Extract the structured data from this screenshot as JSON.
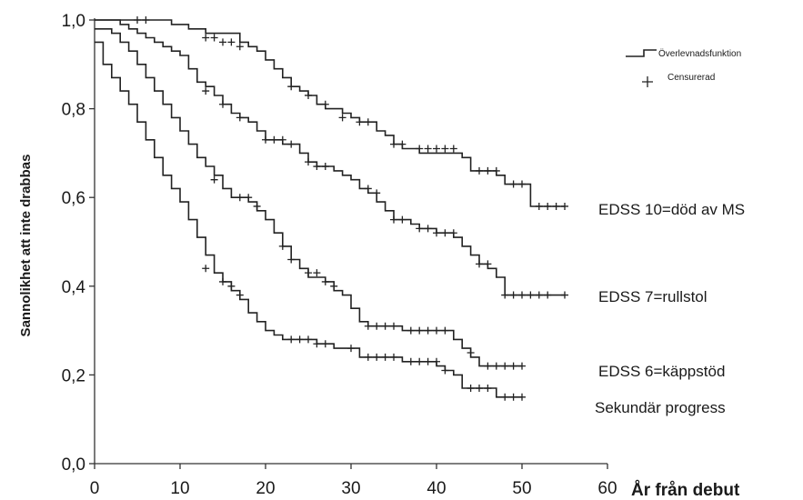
{
  "chart_data": {
    "type": "line",
    "title": "",
    "xlabel": "År från debut",
    "ylabel": "Sannolikhet att inte drabbas",
    "xlim": [
      0,
      60
    ],
    "ylim": [
      0,
      1
    ],
    "x_ticks": [
      "0",
      "10",
      "20",
      "30",
      "40",
      "50",
      "60"
    ],
    "y_ticks": [
      "0,0",
      "0,2",
      "0,4",
      "0,6",
      "0,8",
      "1,0"
    ],
    "grid": false,
    "legend": {
      "position": "top-right",
      "entries": [
        {
          "label": "Överlevnadsfunktion",
          "symbol": "step-line"
        },
        {
          "label": "Censurerad",
          "symbol": "plus"
        }
      ]
    },
    "series": [
      {
        "name": "EDSS 10=död av MS",
        "color": "#222222",
        "steps": [
          [
            0,
            1.0
          ],
          [
            9,
            0.99
          ],
          [
            11,
            0.98
          ],
          [
            13,
            0.97
          ],
          [
            17,
            0.95
          ],
          [
            18,
            0.94
          ],
          [
            19,
            0.93
          ],
          [
            20,
            0.91
          ],
          [
            21,
            0.89
          ],
          [
            22,
            0.87
          ],
          [
            23,
            0.85
          ],
          [
            24,
            0.84
          ],
          [
            25,
            0.83
          ],
          [
            26,
            0.81
          ],
          [
            27,
            0.8
          ],
          [
            29,
            0.79
          ],
          [
            30,
            0.78
          ],
          [
            31,
            0.77
          ],
          [
            33,
            0.75
          ],
          [
            34,
            0.74
          ],
          [
            35,
            0.72
          ],
          [
            36,
            0.71
          ],
          [
            38,
            0.7
          ],
          [
            39,
            0.7
          ],
          [
            43,
            0.69
          ],
          [
            44,
            0.66
          ],
          [
            47,
            0.65
          ],
          [
            48,
            0.63
          ],
          [
            51,
            0.58
          ],
          [
            55,
            0.58
          ]
        ],
        "censored": [
          [
            5,
            1.0
          ],
          [
            6,
            1.0
          ],
          [
            13,
            0.96
          ],
          [
            14,
            0.96
          ],
          [
            15,
            0.95
          ],
          [
            16,
            0.95
          ],
          [
            17,
            0.94
          ],
          [
            23,
            0.85
          ],
          [
            25,
            0.83
          ],
          [
            27,
            0.81
          ],
          [
            29,
            0.78
          ],
          [
            31,
            0.77
          ],
          [
            32,
            0.77
          ],
          [
            35,
            0.72
          ],
          [
            36,
            0.72
          ],
          [
            38,
            0.71
          ],
          [
            39,
            0.71
          ],
          [
            40,
            0.71
          ],
          [
            41,
            0.71
          ],
          [
            42,
            0.71
          ],
          [
            45,
            0.66
          ],
          [
            46,
            0.66
          ],
          [
            47,
            0.66
          ],
          [
            49,
            0.63
          ],
          [
            50,
            0.63
          ],
          [
            52,
            0.58
          ],
          [
            53,
            0.58
          ],
          [
            54,
            0.58
          ],
          [
            55,
            0.58
          ]
        ]
      },
      {
        "name": "EDSS 7=rullstol",
        "color": "#222222",
        "steps": [
          [
            0,
            1.0
          ],
          [
            3,
            0.99
          ],
          [
            4,
            0.98
          ],
          [
            5,
            0.97
          ],
          [
            6,
            0.96
          ],
          [
            7,
            0.95
          ],
          [
            8,
            0.94
          ],
          [
            9,
            0.93
          ],
          [
            10,
            0.92
          ],
          [
            11,
            0.89
          ],
          [
            12,
            0.86
          ],
          [
            13,
            0.85
          ],
          [
            14,
            0.83
          ],
          [
            15,
            0.81
          ],
          [
            16,
            0.79
          ],
          [
            17,
            0.78
          ],
          [
            18,
            0.77
          ],
          [
            19,
            0.75
          ],
          [
            20,
            0.73
          ],
          [
            22,
            0.72
          ],
          [
            24,
            0.7
          ],
          [
            25,
            0.68
          ],
          [
            26,
            0.67
          ],
          [
            28,
            0.66
          ],
          [
            29,
            0.65
          ],
          [
            30,
            0.64
          ],
          [
            31,
            0.62
          ],
          [
            32,
            0.61
          ],
          [
            33,
            0.59
          ],
          [
            34,
            0.57
          ],
          [
            35,
            0.55
          ],
          [
            37,
            0.54
          ],
          [
            38,
            0.53
          ],
          [
            40,
            0.52
          ],
          [
            42,
            0.51
          ],
          [
            43,
            0.49
          ],
          [
            44,
            0.47
          ],
          [
            45,
            0.45
          ],
          [
            46,
            0.44
          ],
          [
            47,
            0.42
          ],
          [
            48,
            0.38
          ],
          [
            55,
            0.38
          ]
        ],
        "censored": [
          [
            13,
            0.84
          ],
          [
            15,
            0.81
          ],
          [
            17,
            0.78
          ],
          [
            20,
            0.73
          ],
          [
            21,
            0.73
          ],
          [
            22,
            0.73
          ],
          [
            23,
            0.72
          ],
          [
            25,
            0.68
          ],
          [
            26,
            0.67
          ],
          [
            27,
            0.67
          ],
          [
            32,
            0.62
          ],
          [
            33,
            0.61
          ],
          [
            35,
            0.55
          ],
          [
            36,
            0.55
          ],
          [
            38,
            0.53
          ],
          [
            39,
            0.53
          ],
          [
            40,
            0.52
          ],
          [
            41,
            0.52
          ],
          [
            42,
            0.52
          ],
          [
            45,
            0.45
          ],
          [
            46,
            0.45
          ],
          [
            48,
            0.38
          ],
          [
            49,
            0.38
          ],
          [
            50,
            0.38
          ],
          [
            51,
            0.38
          ],
          [
            52,
            0.38
          ],
          [
            53,
            0.38
          ],
          [
            55,
            0.38
          ]
        ]
      },
      {
        "name": "EDSS 6=käppstöd",
        "color": "#222222",
        "steps": [
          [
            0,
            0.98
          ],
          [
            2,
            0.97
          ],
          [
            3,
            0.95
          ],
          [
            4,
            0.93
          ],
          [
            5,
            0.9
          ],
          [
            6,
            0.87
          ],
          [
            7,
            0.84
          ],
          [
            8,
            0.81
          ],
          [
            9,
            0.78
          ],
          [
            10,
            0.75
          ],
          [
            11,
            0.72
          ],
          [
            12,
            0.69
          ],
          [
            13,
            0.67
          ],
          [
            14,
            0.65
          ],
          [
            15,
            0.62
          ],
          [
            16,
            0.6
          ],
          [
            18,
            0.59
          ],
          [
            19,
            0.57
          ],
          [
            20,
            0.55
          ],
          [
            21,
            0.52
          ],
          [
            22,
            0.49
          ],
          [
            23,
            0.46
          ],
          [
            24,
            0.44
          ],
          [
            25,
            0.42
          ],
          [
            27,
            0.41
          ],
          [
            28,
            0.39
          ],
          [
            29,
            0.38
          ],
          [
            30,
            0.35
          ],
          [
            31,
            0.32
          ],
          [
            32,
            0.31
          ],
          [
            36,
            0.3
          ],
          [
            42,
            0.28
          ],
          [
            43,
            0.26
          ],
          [
            44,
            0.24
          ],
          [
            45,
            0.22
          ],
          [
            50,
            0.22
          ]
        ],
        "censored": [
          [
            14,
            0.64
          ],
          [
            17,
            0.6
          ],
          [
            18,
            0.6
          ],
          [
            19,
            0.58
          ],
          [
            22,
            0.49
          ],
          [
            23,
            0.46
          ],
          [
            25,
            0.43
          ],
          [
            26,
            0.43
          ],
          [
            27,
            0.41
          ],
          [
            28,
            0.4
          ],
          [
            32,
            0.31
          ],
          [
            33,
            0.31
          ],
          [
            34,
            0.31
          ],
          [
            35,
            0.31
          ],
          [
            37,
            0.3
          ],
          [
            38,
            0.3
          ],
          [
            39,
            0.3
          ],
          [
            40,
            0.3
          ],
          [
            41,
            0.3
          ],
          [
            44,
            0.25
          ],
          [
            46,
            0.22
          ],
          [
            47,
            0.22
          ],
          [
            48,
            0.22
          ],
          [
            49,
            0.22
          ],
          [
            50,
            0.22
          ]
        ]
      },
      {
        "name": "Sekundär progress",
        "color": "#222222",
        "steps": [
          [
            0,
            0.95
          ],
          [
            1,
            0.9
          ],
          [
            2,
            0.87
          ],
          [
            3,
            0.84
          ],
          [
            4,
            0.81
          ],
          [
            5,
            0.77
          ],
          [
            6,
            0.73
          ],
          [
            7,
            0.69
          ],
          [
            8,
            0.65
          ],
          [
            9,
            0.62
          ],
          [
            10,
            0.59
          ],
          [
            11,
            0.55
          ],
          [
            12,
            0.51
          ],
          [
            13,
            0.47
          ],
          [
            14,
            0.43
          ],
          [
            15,
            0.41
          ],
          [
            16,
            0.39
          ],
          [
            17,
            0.37
          ],
          [
            18,
            0.34
          ],
          [
            19,
            0.32
          ],
          [
            20,
            0.3
          ],
          [
            21,
            0.29
          ],
          [
            22,
            0.28
          ],
          [
            26,
            0.27
          ],
          [
            28,
            0.26
          ],
          [
            31,
            0.24
          ],
          [
            36,
            0.23
          ],
          [
            40,
            0.22
          ],
          [
            41,
            0.21
          ],
          [
            42,
            0.2
          ],
          [
            43,
            0.17
          ],
          [
            47,
            0.15
          ],
          [
            50,
            0.15
          ]
        ],
        "censored": [
          [
            13,
            0.44
          ],
          [
            15,
            0.41
          ],
          [
            16,
            0.4
          ],
          [
            17,
            0.38
          ],
          [
            23,
            0.28
          ],
          [
            24,
            0.28
          ],
          [
            25,
            0.28
          ],
          [
            26,
            0.27
          ],
          [
            27,
            0.27
          ],
          [
            30,
            0.26
          ],
          [
            32,
            0.24
          ],
          [
            33,
            0.24
          ],
          [
            34,
            0.24
          ],
          [
            35,
            0.24
          ],
          [
            37,
            0.23
          ],
          [
            38,
            0.23
          ],
          [
            39,
            0.23
          ],
          [
            40,
            0.23
          ],
          [
            41,
            0.21
          ],
          [
            44,
            0.17
          ],
          [
            45,
            0.17
          ],
          [
            46,
            0.17
          ],
          [
            48,
            0.15
          ],
          [
            49,
            0.15
          ],
          [
            50,
            0.15
          ]
        ]
      }
    ]
  }
}
